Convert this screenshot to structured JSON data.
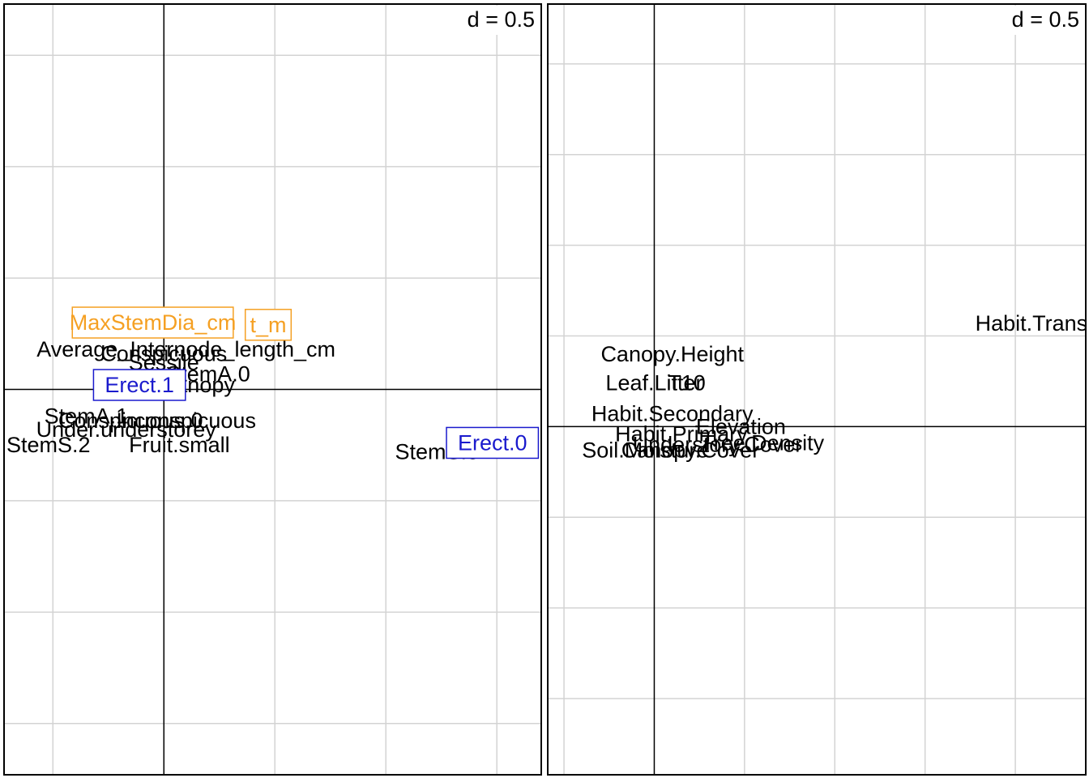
{
  "chart_data": [
    {
      "type": "scatter",
      "panel": "left",
      "scale_label": "d = 0.5",
      "grid_step": 0.5,
      "grid": true,
      "xlim": [
        -0.72,
        1.7
      ],
      "ylim": [
        -1.73,
        1.73
      ],
      "origin_axes": true,
      "points": [
        {
          "label": "MaxStemDia_cm",
          "x": -0.05,
          "y": 0.3,
          "style": "box",
          "color": "#f5a023"
        },
        {
          "label": "Height_m",
          "x": 0.47,
          "y": 0.29,
          "style": "box",
          "color": "#f5a023",
          "visible_text": "t_m"
        },
        {
          "label": "Average_Internode_length_cm",
          "x": 0.1,
          "y": 0.18,
          "style": "text"
        },
        {
          "label": "Conspicuous",
          "x": 0.0,
          "y": 0.16,
          "style": "text"
        },
        {
          "label": "Sessile",
          "x": 0.0,
          "y": 0.12,
          "style": "text"
        },
        {
          "label": "StemA.0",
          "x": 0.2,
          "y": 0.07,
          "style": "text"
        },
        {
          "label": "Canopy",
          "x": 0.15,
          "y": 0.02,
          "style": "text"
        },
        {
          "label": "Erect.1",
          "x": -0.11,
          "y": 0.02,
          "style": "box",
          "color": "#1a1acd"
        },
        {
          "label": "StemA.1",
          "x": -0.35,
          "y": -0.12,
          "style": "text"
        },
        {
          "label": "Conspicuous.0",
          "x": -0.15,
          "y": -0.14,
          "style": "text"
        },
        {
          "label": "Inconspicuous",
          "x": 0.1,
          "y": -0.14,
          "style": "text"
        },
        {
          "label": "Under.understorey",
          "x": -0.17,
          "y": -0.18,
          "style": "text"
        },
        {
          "label": "StemS.2",
          "x": -0.52,
          "y": -0.25,
          "style": "text"
        },
        {
          "label": "Fruit.small",
          "x": 0.07,
          "y": -0.25,
          "style": "text"
        },
        {
          "label": "StemS.0",
          "x": 1.23,
          "y": -0.28,
          "style": "text"
        },
        {
          "label": "Erect.0",
          "x": 1.48,
          "y": -0.24,
          "style": "box",
          "color": "#1a1acd"
        }
      ]
    },
    {
      "type": "scatter",
      "panel": "right",
      "scale_label": "d = 0.5",
      "grid_step": 0.5,
      "grid": true,
      "xlim": [
        -0.59,
        2.39
      ],
      "ylim": [
        -1.92,
        2.33
      ],
      "origin_axes": true,
      "points": [
        {
          "label": "Habit.Transition",
          "x": 2.2,
          "y": 0.57,
          "style": "text"
        },
        {
          "label": "Canopy.Height",
          "x": 0.1,
          "y": 0.4,
          "style": "text"
        },
        {
          "label": "Leaf.Litter",
          "x": 0.0,
          "y": 0.24,
          "style": "text"
        },
        {
          "label": "T10",
          "x": 0.18,
          "y": 0.24,
          "style": "text"
        },
        {
          "label": "Habit.Secondary",
          "x": 0.1,
          "y": 0.07,
          "style": "text"
        },
        {
          "label": "Elevation",
          "x": 0.48,
          "y": 0.0,
          "style": "text"
        },
        {
          "label": "Habit.Primary",
          "x": 0.15,
          "y": -0.04,
          "style": "text"
        },
        {
          "label": "Tree.Density",
          "x": 0.6,
          "y": -0.09,
          "style": "text"
        },
        {
          "label": "Soil.Moisture",
          "x": -0.05,
          "y": -0.13,
          "style": "text"
        },
        {
          "label": "Canopy.Cover",
          "x": 0.2,
          "y": -0.13,
          "style": "text"
        },
        {
          "label": "Understory.Cover",
          "x": 0.35,
          "y": -0.1,
          "style": "text"
        }
      ]
    }
  ]
}
